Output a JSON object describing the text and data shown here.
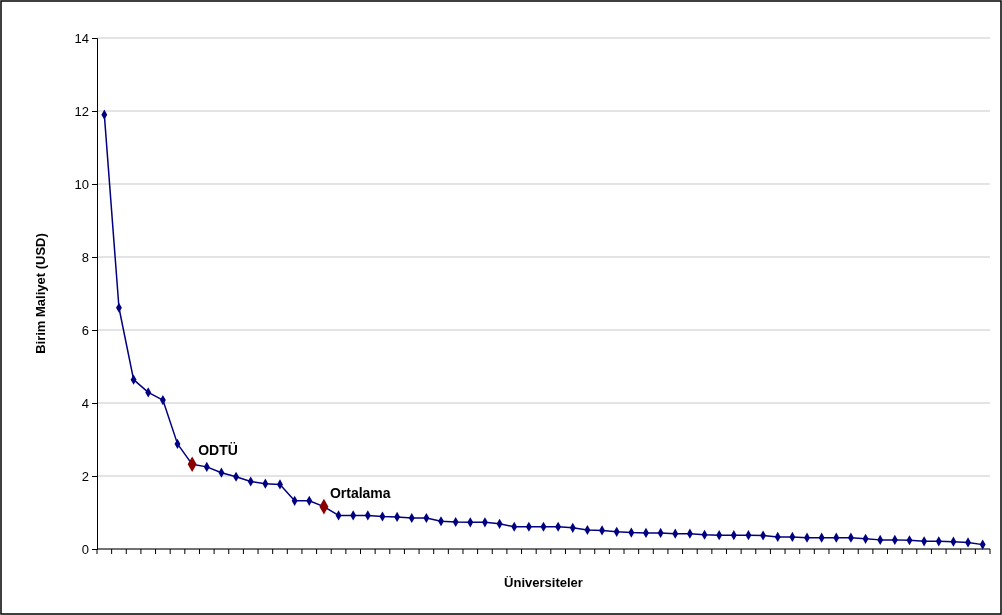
{
  "chart_data": {
    "type": "line",
    "xlabel": "Üniversiteler",
    "ylabel": "Birim Maliyet (USD)",
    "categories": [
      null,
      null,
      null,
      null,
      null,
      null,
      null,
      null,
      null,
      null,
      null,
      null,
      null,
      null,
      null,
      null,
      null,
      null,
      null,
      null,
      null,
      null,
      null,
      null,
      null,
      null,
      null,
      null,
      null,
      null,
      null,
      null,
      null,
      null,
      null,
      null,
      null,
      null,
      null,
      null,
      null,
      null,
      null,
      null,
      null,
      null,
      null,
      null,
      null,
      null,
      null,
      null,
      null,
      null,
      null,
      null,
      null,
      null,
      null,
      null,
      null
    ],
    "series": [
      {
        "color": "#000080",
        "values": [
          11.9,
          6.61,
          4.64,
          4.29,
          4.08,
          2.88,
          2.32,
          2.25,
          2.09,
          1.98,
          1.85,
          1.79,
          1.77,
          1.32,
          1.32,
          1.16,
          0.92,
          0.92,
          0.92,
          0.89,
          0.88,
          0.85,
          0.85,
          0.76,
          0.74,
          0.73,
          0.73,
          0.69,
          0.61,
          0.61,
          0.61,
          0.61,
          0.58,
          0.52,
          0.51,
          0.47,
          0.45,
          0.44,
          0.44,
          0.42,
          0.42,
          0.39,
          0.38,
          0.38,
          0.38,
          0.37,
          0.33,
          0.33,
          0.31,
          0.31,
          0.31,
          0.31,
          0.28,
          0.25,
          0.25,
          0.24,
          0.21,
          0.21,
          0.2,
          0.18,
          0.12
        ],
        "colors": [
          "#000080",
          "#000080",
          "#000080",
          "#000080",
          "#000080",
          "#000080",
          "#8b0000",
          "#000080",
          "#000080",
          "#000080",
          "#000080",
          "#000080",
          "#000080",
          "#000080",
          "#000080",
          "#8b0000",
          "#000080",
          "#000080",
          "#000080",
          "#000080",
          "#000080",
          "#000080",
          "#000080",
          "#000080",
          "#000080",
          "#000080",
          "#000080",
          "#000080",
          "#000080",
          "#000080",
          "#000080",
          "#000080",
          "#000080",
          "#000080",
          "#000080",
          "#000080",
          "#000080",
          "#000080",
          "#000080",
          "#000080",
          "#000080",
          "#000080",
          "#000080",
          "#000080",
          "#000080",
          "#000080",
          "#000080",
          "#000080",
          "#000080",
          "#000080",
          "#000080",
          "#000080",
          "#000080",
          "#000080",
          "#000080",
          "#000080",
          "#000080",
          "#000080",
          "#000080",
          "#000080",
          "#000080"
        ]
      }
    ],
    "ylim": [
      0,
      14
    ],
    "yticks": [
      0,
      2,
      4,
      6,
      8,
      10,
      12,
      14
    ],
    "grid": "y",
    "marker": "diamond",
    "line_style": "solid",
    "annotations": [
      {
        "text": "ODTÜ",
        "y": 2.32
      },
      "Ortalama"
    ]
  }
}
